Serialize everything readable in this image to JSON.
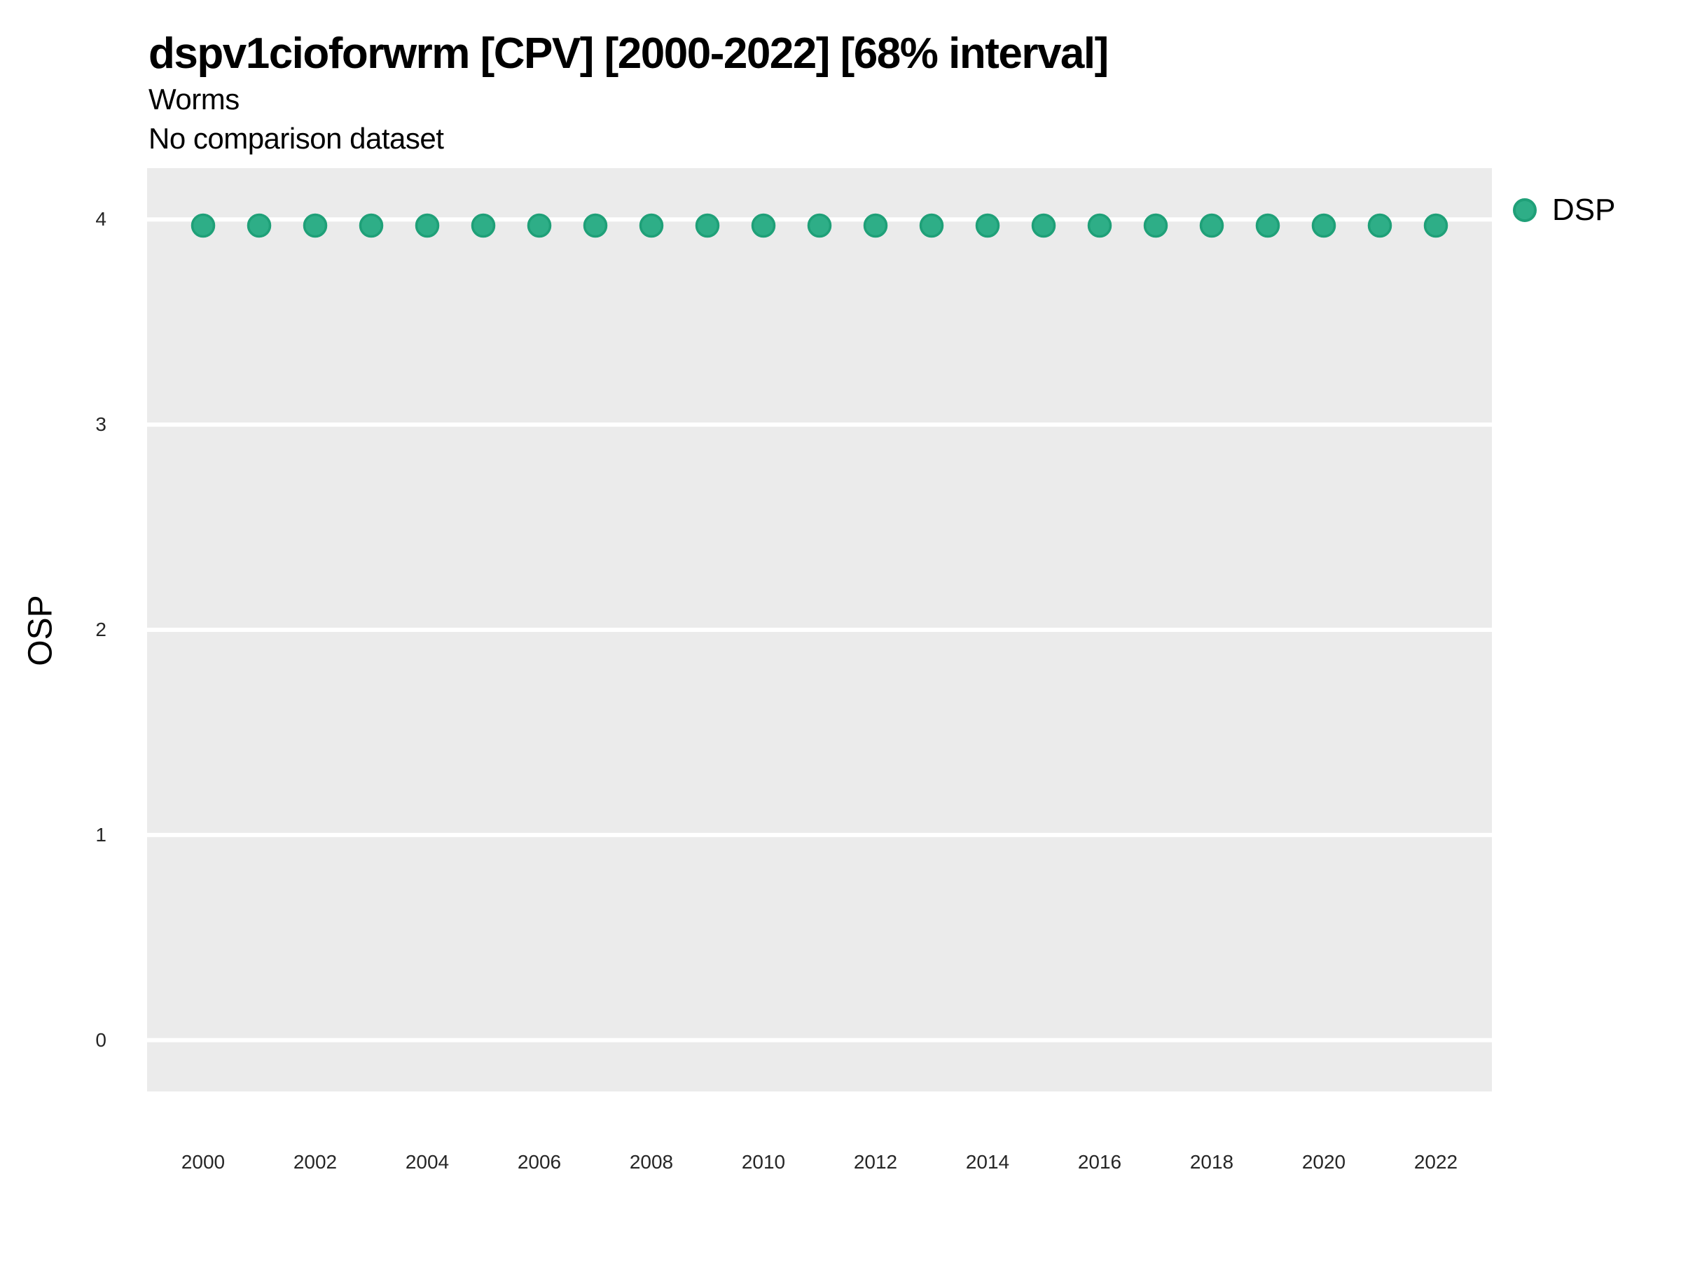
{
  "chart_data": {
    "type": "scatter",
    "title": "dspv1cioforwrm [CPV] [2000-2022] [68% interval]",
    "subtitle": "Worms",
    "note": "No comparison dataset",
    "xlabel": "",
    "ylabel": "OSP",
    "x": [
      2000,
      2001,
      2002,
      2003,
      2004,
      2005,
      2006,
      2007,
      2008,
      2009,
      2010,
      2011,
      2012,
      2013,
      2014,
      2015,
      2016,
      2017,
      2018,
      2019,
      2020,
      2021,
      2022
    ],
    "series": [
      {
        "name": "DSP",
        "values": [
          3.97,
          3.97,
          3.97,
          3.97,
          3.97,
          3.97,
          3.97,
          3.97,
          3.97,
          3.97,
          3.97,
          3.97,
          3.97,
          3.97,
          3.97,
          3.97,
          3.97,
          3.97,
          3.97,
          3.97,
          3.97,
          3.97,
          3.97
        ]
      }
    ],
    "xlim": [
      1999,
      2023
    ],
    "ylim": [
      -0.25,
      4.25
    ],
    "x_ticks": [
      2000,
      2002,
      2004,
      2006,
      2008,
      2010,
      2012,
      2014,
      2016,
      2018,
      2020,
      2022
    ],
    "y_ticks": [
      0,
      1,
      2,
      3,
      4
    ],
    "grid": "horizontal-major-only",
    "legend": {
      "position": "top-right",
      "entries": [
        {
          "label": "DSP",
          "color": "#2eae87"
        }
      ]
    },
    "colors": {
      "point_fill": "#2eae87",
      "point_stroke": "#1fa078",
      "panel_bg": "#ebebeb",
      "gridline": "#ffffff",
      "tick_label": "#262626",
      "text": "#000000"
    }
  }
}
